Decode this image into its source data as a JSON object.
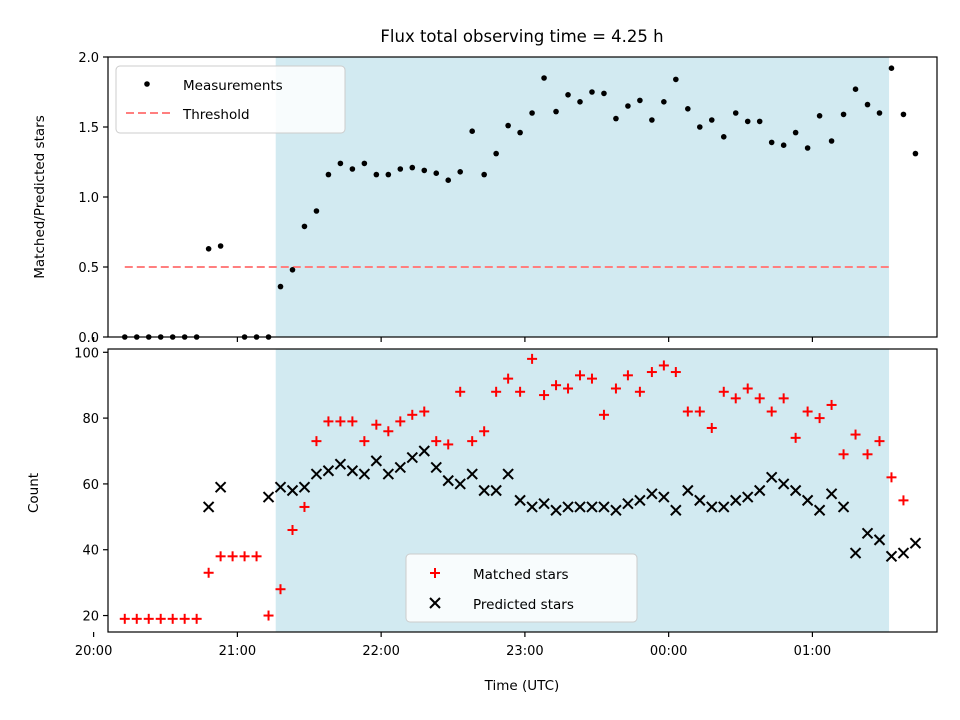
{
  "chart_data": [
    {
      "type": "scatter",
      "title": "Flux total observing time = 4.25 h",
      "ylabel": "Matched/Predicted stars",
      "xlabel": "",
      "xlim": [
        "20:06",
        "01:52"
      ],
      "ylim": [
        0,
        2.0
      ],
      "yticks": [
        "0.0",
        "0.5",
        "1.0",
        "1.5",
        "2.0"
      ],
      "grid": false,
      "legend_position": "upper-left",
      "shaded_region": {
        "start": "21:16",
        "end": "01:32",
        "color": "#add8e6"
      },
      "threshold": {
        "name": "Threshold",
        "value": 0.5,
        "start": "20:13",
        "end": "01:32",
        "color": "#ff7f7f"
      },
      "series": [
        {
          "name": "Measurements",
          "color": "#000000",
          "points": [
            [
              "20:13",
              0
            ],
            [
              "20:18",
              0
            ],
            [
              "20:23",
              0
            ],
            [
              "20:28",
              0
            ],
            [
              "20:33",
              0
            ],
            [
              "20:38",
              0
            ],
            [
              "20:43",
              0
            ],
            [
              "20:48",
              0.63
            ],
            [
              "20:53",
              0.65
            ],
            [
              "21:03",
              0
            ],
            [
              "21:08",
              0
            ],
            [
              "21:13",
              0
            ],
            [
              "21:18",
              0.36
            ],
            [
              "21:23",
              0.48
            ],
            [
              "21:28",
              0.79
            ],
            [
              "21:33",
              0.9
            ],
            [
              "21:38",
              1.16
            ],
            [
              "21:43",
              1.24
            ],
            [
              "21:48",
              1.2
            ],
            [
              "21:53",
              1.24
            ],
            [
              "21:58",
              1.16
            ],
            [
              "22:03",
              1.16
            ],
            [
              "22:08",
              1.2
            ],
            [
              "22:13",
              1.21
            ],
            [
              "22:18",
              1.19
            ],
            [
              "22:23",
              1.17
            ],
            [
              "22:28",
              1.12
            ],
            [
              "22:33",
              1.18
            ],
            [
              "22:38",
              1.47
            ],
            [
              "22:43",
              1.16
            ],
            [
              "22:48",
              1.31
            ],
            [
              "22:53",
              1.51
            ],
            [
              "22:58",
              1.46
            ],
            [
              "23:03",
              1.6
            ],
            [
              "23:08",
              1.85
            ],
            [
              "23:13",
              1.61
            ],
            [
              "23:18",
              1.73
            ],
            [
              "23:23",
              1.68
            ],
            [
              "23:28",
              1.75
            ],
            [
              "23:33",
              1.74
            ],
            [
              "23:38",
              1.56
            ],
            [
              "23:43",
              1.65
            ],
            [
              "23:48",
              1.69
            ],
            [
              "23:53",
              1.55
            ],
            [
              "23:58",
              1.68
            ],
            [
              "00:03",
              1.84
            ],
            [
              "00:08",
              1.63
            ],
            [
              "00:13",
              1.5
            ],
            [
              "00:18",
              1.55
            ],
            [
              "00:23",
              1.43
            ],
            [
              "00:28",
              1.6
            ],
            [
              "00:33",
              1.54
            ],
            [
              "00:38",
              1.54
            ],
            [
              "00:43",
              1.39
            ],
            [
              "00:48",
              1.37
            ],
            [
              "00:53",
              1.46
            ],
            [
              "00:58",
              1.35
            ],
            [
              "01:03",
              1.58
            ],
            [
              "01:08",
              1.4
            ],
            [
              "01:13",
              1.59
            ],
            [
              "01:18",
              1.77
            ],
            [
              "01:23",
              1.66
            ],
            [
              "01:28",
              1.6
            ],
            [
              "01:33",
              1.92
            ],
            [
              "01:38",
              1.59
            ],
            [
              "01:43",
              1.31
            ]
          ]
        }
      ]
    },
    {
      "type": "scatter",
      "title": "",
      "ylabel": "Count",
      "xlabel": "Time (UTC)",
      "xlim": [
        "20:06",
        "01:52"
      ],
      "ylim": [
        15,
        101
      ],
      "yticks": [
        "20",
        "40",
        "60",
        "80",
        "100"
      ],
      "xticks": [
        "20:00",
        "21:00",
        "22:00",
        "23:00",
        "00:00",
        "01:00"
      ],
      "grid": false,
      "legend_position": "lower-center",
      "shaded_region": {
        "start": "21:16",
        "end": "01:32",
        "color": "#add8e6"
      },
      "series": [
        {
          "name": "Matched stars",
          "marker": "plus",
          "color": "#ff0000",
          "points": [
            [
              "20:13",
              19
            ],
            [
              "20:18",
              19
            ],
            [
              "20:23",
              19
            ],
            [
              "20:28",
              19
            ],
            [
              "20:33",
              19
            ],
            [
              "20:38",
              19
            ],
            [
              "20:43",
              19
            ],
            [
              "20:48",
              33
            ],
            [
              "20:53",
              38
            ],
            [
              "20:58",
              38
            ],
            [
              "21:03",
              38
            ],
            [
              "21:08",
              38
            ],
            [
              "21:13",
              20
            ],
            [
              "21:18",
              28
            ],
            [
              "21:23",
              46
            ],
            [
              "21:28",
              53
            ],
            [
              "21:33",
              73
            ],
            [
              "21:38",
              79
            ],
            [
              "21:43",
              79
            ],
            [
              "21:48",
              79
            ],
            [
              "21:53",
              73
            ],
            [
              "21:58",
              78
            ],
            [
              "22:03",
              76
            ],
            [
              "22:08",
              79
            ],
            [
              "22:13",
              81
            ],
            [
              "22:18",
              82
            ],
            [
              "22:23",
              73
            ],
            [
              "22:28",
              72
            ],
            [
              "22:33",
              88
            ],
            [
              "22:38",
              73
            ],
            [
              "22:43",
              76
            ],
            [
              "22:48",
              88
            ],
            [
              "22:53",
              92
            ],
            [
              "22:58",
              88
            ],
            [
              "23:03",
              98
            ],
            [
              "23:08",
              87
            ],
            [
              "23:13",
              90
            ],
            [
              "23:18",
              89
            ],
            [
              "23:23",
              93
            ],
            [
              "23:28",
              92
            ],
            [
              "23:33",
              81
            ],
            [
              "23:38",
              89
            ],
            [
              "23:43",
              93
            ],
            [
              "23:48",
              88
            ],
            [
              "23:53",
              94
            ],
            [
              "23:58",
              96
            ],
            [
              "00:03",
              94
            ],
            [
              "00:08",
              82
            ],
            [
              "00:13",
              82
            ],
            [
              "00:18",
              77
            ],
            [
              "00:23",
              88
            ],
            [
              "00:28",
              86
            ],
            [
              "00:33",
              89
            ],
            [
              "00:38",
              86
            ],
            [
              "00:43",
              82
            ],
            [
              "00:48",
              86
            ],
            [
              "00:53",
              74
            ],
            [
              "00:58",
              82
            ],
            [
              "01:03",
              80
            ],
            [
              "01:08",
              84
            ],
            [
              "01:13",
              69
            ],
            [
              "01:18",
              75
            ],
            [
              "01:23",
              69
            ],
            [
              "01:28",
              73
            ],
            [
              "01:33",
              62
            ],
            [
              "01:38",
              55
            ]
          ]
        },
        {
          "name": "Predicted stars",
          "marker": "x",
          "color": "#000000",
          "points": [
            [
              "20:48",
              53
            ],
            [
              "20:53",
              59
            ],
            [
              "21:13",
              56
            ],
            [
              "21:18",
              59
            ],
            [
              "21:23",
              58
            ],
            [
              "21:28",
              59
            ],
            [
              "21:33",
              63
            ],
            [
              "21:38",
              64
            ],
            [
              "21:43",
              66
            ],
            [
              "21:48",
              64
            ],
            [
              "21:53",
              63
            ],
            [
              "21:58",
              67
            ],
            [
              "22:03",
              63
            ],
            [
              "22:08",
              65
            ],
            [
              "22:13",
              68
            ],
            [
              "22:18",
              70
            ],
            [
              "22:23",
              65
            ],
            [
              "22:28",
              61
            ],
            [
              "22:33",
              60
            ],
            [
              "22:38",
              63
            ],
            [
              "22:43",
              58
            ],
            [
              "22:48",
              58
            ],
            [
              "22:53",
              63
            ],
            [
              "22:58",
              55
            ],
            [
              "23:03",
              53
            ],
            [
              "23:08",
              54
            ],
            [
              "23:13",
              52
            ],
            [
              "23:18",
              53
            ],
            [
              "23:23",
              53
            ],
            [
              "23:28",
              53
            ],
            [
              "23:33",
              53
            ],
            [
              "23:38",
              52
            ],
            [
              "23:43",
              54
            ],
            [
              "23:48",
              55
            ],
            [
              "23:53",
              57
            ],
            [
              "23:58",
              56
            ],
            [
              "00:03",
              52
            ],
            [
              "00:08",
              58
            ],
            [
              "00:13",
              55
            ],
            [
              "00:18",
              53
            ],
            [
              "00:23",
              53
            ],
            [
              "00:28",
              55
            ],
            [
              "00:33",
              56
            ],
            [
              "00:38",
              58
            ],
            [
              "00:43",
              62
            ],
            [
              "00:48",
              60
            ],
            [
              "00:53",
              58
            ],
            [
              "00:58",
              55
            ],
            [
              "01:03",
              52
            ],
            [
              "01:08",
              57
            ],
            [
              "01:13",
              53
            ],
            [
              "01:18",
              39
            ],
            [
              "01:23",
              45
            ],
            [
              "01:28",
              43
            ],
            [
              "01:33",
              38
            ],
            [
              "01:38",
              39
            ],
            [
              "01:43",
              42
            ]
          ]
        }
      ]
    }
  ]
}
